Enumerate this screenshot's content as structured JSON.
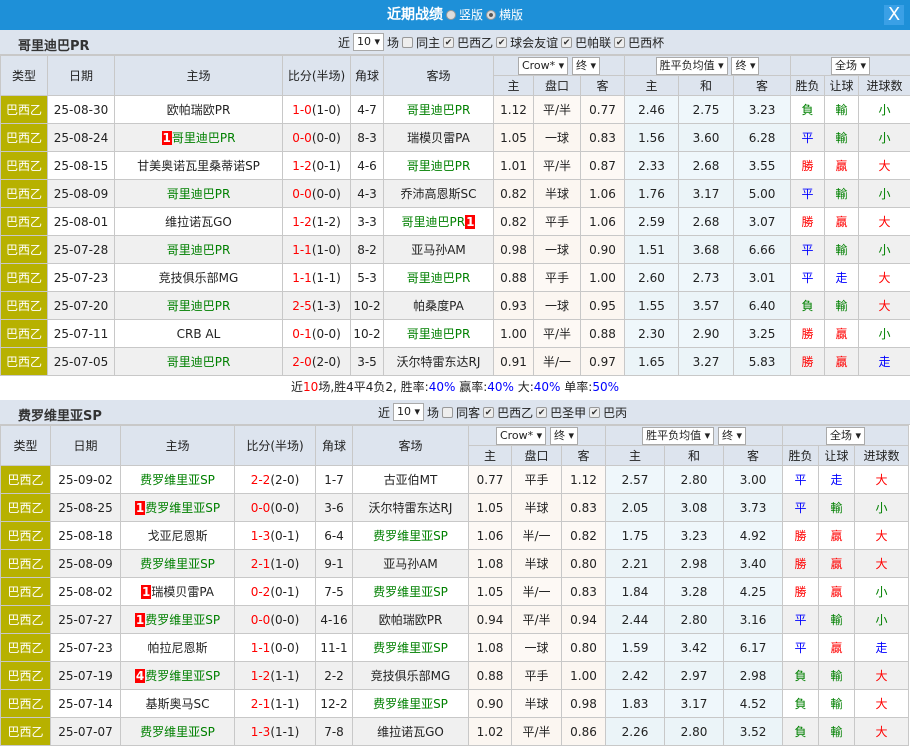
{
  "title": {
    "label": "近期战绩",
    "opt1": "竖版",
    "opt2": "横版",
    "close": "X"
  },
  "colors": {
    "title_bg": "#1e90d8",
    "type_bg": "#b7b100",
    "win": "#ff0000",
    "draw": "#0000ff",
    "loss": "#008000"
  },
  "headers": {
    "type": "类型",
    "date": "日期",
    "home": "主场",
    "score": "比分(半场)",
    "corner": "角球",
    "away": "客场",
    "crow": "Crow*",
    "final": "终",
    "odds": "胜平负均值",
    "final2": "终",
    "range": "全场",
    "h": "主",
    "hcp": "盘口",
    "a": "客",
    "h2": "主",
    "d": "和",
    "a2": "客",
    "wl": "胜负",
    "ah": "让球",
    "ou": "进球数"
  },
  "section1": {
    "team": "哥里迪巴PR",
    "filters": {
      "near": "近",
      "count": "10",
      "unit": "场",
      "same": "同主",
      "leagues": [
        "巴西乙",
        "球会友谊",
        "巴帕联",
        "巴西杯"
      ]
    },
    "rows": [
      [
        "巴西乙",
        "25-08-30",
        "欧帕瑞欧PR",
        "",
        "1-0",
        "(1-0)",
        "4-7",
        "哥里迪巴PR",
        "",
        "1.12",
        "平/半",
        "0.77",
        "2.46",
        "2.75",
        "3.23",
        "負",
        "輸",
        "小",
        "a"
      ],
      [
        "巴西乙",
        "25-08-24",
        "哥里迪巴PR",
        "1",
        "0-0",
        "(0-0)",
        "8-3",
        "瑞模贝雷PA",
        "",
        "1.05",
        "一球",
        "0.83",
        "1.56",
        "3.60",
        "6.28",
        "平",
        "輸",
        "小",
        "h"
      ],
      [
        "巴西乙",
        "25-08-15",
        "甘美奥诺瓦里桑蒂诺SP",
        "",
        "1-2",
        "(0-1)",
        "4-6",
        "哥里迪巴PR",
        "",
        "1.01",
        "平/半",
        "0.87",
        "2.33",
        "2.68",
        "3.55",
        "勝",
        "贏",
        "大",
        "a"
      ],
      [
        "巴西乙",
        "25-08-09",
        "哥里迪巴PR",
        "",
        "0-0",
        "(0-0)",
        "4-3",
        "乔沛高恩斯SC",
        "",
        "0.82",
        "半球",
        "1.06",
        "1.76",
        "3.17",
        "5.00",
        "平",
        "輸",
        "小",
        "h"
      ],
      [
        "巴西乙",
        "25-08-01",
        "维拉诺瓦GO",
        "",
        "1-2",
        "(1-2)",
        "3-3",
        "哥里迪巴PR",
        "1",
        "0.82",
        "平手",
        "1.06",
        "2.59",
        "2.68",
        "3.07",
        "勝",
        "贏",
        "大",
        "a"
      ],
      [
        "巴西乙",
        "25-07-28",
        "哥里迪巴PR",
        "",
        "1-1",
        "(1-0)",
        "8-2",
        "亚马孙AM",
        "",
        "0.98",
        "一球",
        "0.90",
        "1.51",
        "3.68",
        "6.66",
        "平",
        "輸",
        "小",
        "h"
      ],
      [
        "巴西乙",
        "25-07-23",
        "竞技俱乐部MG",
        "",
        "1-1",
        "(1-1)",
        "5-3",
        "哥里迪巴PR",
        "",
        "0.88",
        "平手",
        "1.00",
        "2.60",
        "2.73",
        "3.01",
        "平",
        "走",
        "大",
        "a"
      ],
      [
        "巴西乙",
        "25-07-20",
        "哥里迪巴PR",
        "",
        "2-5",
        "(1-3)",
        "10-2",
        "帕桑度PA",
        "",
        "0.93",
        "一球",
        "0.95",
        "1.55",
        "3.57",
        "6.40",
        "負",
        "輸",
        "大",
        "h"
      ],
      [
        "巴西乙",
        "25-07-11",
        "CRB AL",
        "",
        "0-1",
        "(0-0)",
        "10-2",
        "哥里迪巴PR",
        "",
        "1.00",
        "平/半",
        "0.88",
        "2.30",
        "2.90",
        "3.25",
        "勝",
        "贏",
        "小",
        "a"
      ],
      [
        "巴西乙",
        "25-07-05",
        "哥里迪巴PR",
        "",
        "2-0",
        "(2-0)",
        "3-5",
        "沃尔特雷东达RJ",
        "",
        "0.91",
        "半/一",
        "0.97",
        "1.65",
        "3.27",
        "5.83",
        "勝",
        "贏",
        "走",
        "h"
      ]
    ],
    "summary": {
      "p1": "近",
      "n": "10",
      "p2": "场,胜4平4负2, 胜率:",
      "win": "40%",
      "p3": " 赢率:",
      "ah": "40%",
      "p4": " 大:",
      "big": "40%",
      "p5": " 单率:",
      "odd": "50%"
    }
  },
  "section2": {
    "team": "费罗维里亚SP",
    "filters": {
      "near": "近",
      "count": "10",
      "unit": "场",
      "same": "同客",
      "leagues": [
        "巴西乙",
        "巴圣甲",
        "巴丙"
      ]
    },
    "rows": [
      [
        "巴西乙",
        "25-09-02",
        "费罗维里亚SP",
        "",
        "2-2",
        "(2-0)",
        "1-7",
        "古亚伯MT",
        "",
        "0.77",
        "平手",
        "1.12",
        "2.57",
        "2.80",
        "3.00",
        "平",
        "走",
        "大",
        "h"
      ],
      [
        "巴西乙",
        "25-08-25",
        "费罗维里亚SP",
        "1",
        "0-0",
        "(0-0)",
        "3-6",
        "沃尔特雷东达RJ",
        "",
        "1.05",
        "半球",
        "0.83",
        "2.05",
        "3.08",
        "3.73",
        "平",
        "輸",
        "小",
        "h"
      ],
      [
        "巴西乙",
        "25-08-18",
        "戈亚尼恩斯",
        "",
        "1-3",
        "(0-1)",
        "6-4",
        "费罗维里亚SP",
        "",
        "1.06",
        "半/一",
        "0.82",
        "1.75",
        "3.23",
        "4.92",
        "勝",
        "贏",
        "大",
        "a"
      ],
      [
        "巴西乙",
        "25-08-09",
        "费罗维里亚SP",
        "",
        "2-1",
        "(1-0)",
        "9-1",
        "亚马孙AM",
        "",
        "1.08",
        "半球",
        "0.80",
        "2.21",
        "2.98",
        "3.40",
        "勝",
        "贏",
        "大",
        "h"
      ],
      [
        "巴西乙",
        "25-08-02",
        "瑞模贝雷PA",
        "1",
        "0-2",
        "(0-1)",
        "7-5",
        "费罗维里亚SP",
        "",
        "1.05",
        "半/一",
        "0.83",
        "1.84",
        "3.28",
        "4.25",
        "勝",
        "贏",
        "小",
        "a"
      ],
      [
        "巴西乙",
        "25-07-27",
        "费罗维里亚SP",
        "1",
        "0-0",
        "(0-0)",
        "4-16",
        "欧帕瑞欧PR",
        "",
        "0.94",
        "平/半",
        "0.94",
        "2.44",
        "2.80",
        "3.16",
        "平",
        "輸",
        "小",
        "h"
      ],
      [
        "巴西乙",
        "25-07-23",
        "帕拉尼恩斯",
        "",
        "1-1",
        "(0-0)",
        "11-1",
        "费罗维里亚SP",
        "",
        "1.08",
        "一球",
        "0.80",
        "1.59",
        "3.42",
        "6.17",
        "平",
        "贏",
        "走",
        "a"
      ],
      [
        "巴西乙",
        "25-07-19",
        "费罗维里亚SP",
        "4",
        "1-2",
        "(1-1)",
        "2-2",
        "竞技俱乐部MG",
        "",
        "0.88",
        "平手",
        "1.00",
        "2.42",
        "2.97",
        "2.98",
        "負",
        "輸",
        "大",
        "h"
      ],
      [
        "巴西乙",
        "25-07-14",
        "基斯奥马SC",
        "",
        "2-1",
        "(1-1)",
        "12-2",
        "费罗维里亚SP",
        "",
        "0.90",
        "半球",
        "0.98",
        "1.83",
        "3.17",
        "4.52",
        "負",
        "輸",
        "大",
        "a"
      ],
      [
        "巴西乙",
        "25-07-07",
        "费罗维里亚SP",
        "",
        "1-3",
        "(1-1)",
        "7-8",
        "维拉诺瓦GO",
        "",
        "1.02",
        "平/半",
        "0.86",
        "2.26",
        "2.80",
        "3.52",
        "負",
        "輸",
        "大",
        "h"
      ]
    ]
  }
}
